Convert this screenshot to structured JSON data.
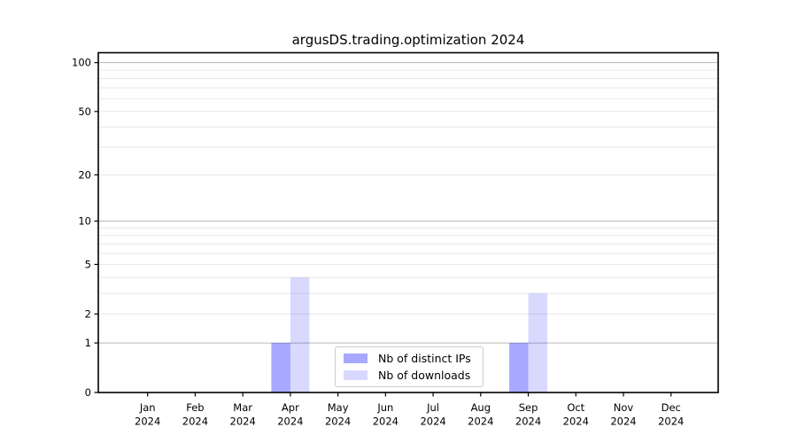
{
  "chart_data": {
    "type": "bar",
    "title": "argusDS.trading.optimization 2024",
    "categories": [
      "Jan",
      "Feb",
      "Mar",
      "Apr",
      "May",
      "Jun",
      "Jul",
      "Aug",
      "Sep",
      "Oct",
      "Nov",
      "Dec"
    ],
    "category_year": "2024",
    "series": [
      {
        "name": "Nb of distinct IPs",
        "color": "rgba(0,0,255,0.34)",
        "values": [
          0,
          0,
          0,
          1,
          0,
          0,
          0,
          0,
          1,
          0,
          0,
          0
        ]
      },
      {
        "name": "Nb of downloads",
        "color": "rgba(0,0,255,0.15)",
        "values": [
          0,
          0,
          0,
          4,
          0,
          0,
          0,
          0,
          3,
          0,
          0,
          0
        ]
      }
    ],
    "yscale": "log1p",
    "ylim": [
      0,
      115
    ],
    "yticks": [
      0,
      1,
      2,
      5,
      10,
      20,
      50,
      100
    ],
    "major_gridlines": [
      1,
      10,
      100
    ],
    "minor_gridlines": [
      2,
      3,
      4,
      5,
      6,
      7,
      8,
      9,
      20,
      30,
      40,
      50,
      60,
      70,
      80,
      90
    ],
    "grid": true,
    "legend_position": "inside-bottom-center",
    "colors": {
      "axis": "#000000",
      "grid_major": "#b6b6b6",
      "grid_minor": "#e7e7e7",
      "tick_label": "#000000",
      "background": "#ffffff"
    }
  }
}
